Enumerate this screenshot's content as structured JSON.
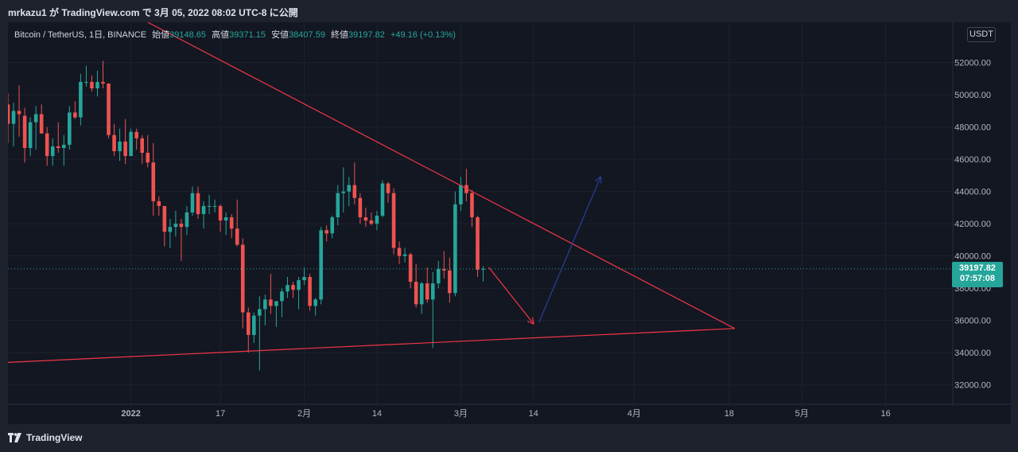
{
  "header": {
    "title": "mrkazu1 が TradingView.com で 3月 05, 2022 08:02 UTC-8 に公開"
  },
  "legend": {
    "symbol": "Bitcoin / TetherUS, 1日, BINANCE",
    "open_label": "始値",
    "open": "39148.65",
    "high_label": "高値",
    "high": "39371.15",
    "low_label": "安値",
    "low": "38407.59",
    "close_label": "終値",
    "close": "39197.82",
    "change": "+49.16 (+0.13%)"
  },
  "currency_badge": "USDT",
  "price_tag": {
    "price": "39197.82",
    "countdown": "07:57:08"
  },
  "footer": {
    "brand": "TradingView"
  },
  "colors": {
    "up": "#26a69a",
    "down": "#ef5350",
    "trendline": "#f23645",
    "arrow_down": "#f23645",
    "arrow_up": "#2a3f9a",
    "background": "#131722"
  },
  "chart_data": {
    "type": "candlestick",
    "symbol": "BTCUSDT",
    "interval": "1D",
    "x_ticks": [
      {
        "label": "2022",
        "date": "2022-01-01"
      },
      {
        "label": "17",
        "date": "2022-01-17"
      },
      {
        "label": "2月",
        "date": "2022-02-01"
      },
      {
        "label": "14",
        "date": "2022-02-14"
      },
      {
        "label": "3月",
        "date": "2022-03-01"
      },
      {
        "label": "14",
        "date": "2022-03-14"
      },
      {
        "label": "4月",
        "date": "2022-04-01"
      },
      {
        "label": "18",
        "date": "2022-04-18"
      },
      {
        "label": "5月",
        "date": "2022-05-01"
      },
      {
        "label": "16",
        "date": "2022-05-16"
      }
    ],
    "y_ticks": [
      32000,
      34000,
      36000,
      38000,
      40000,
      42000,
      44000,
      46000,
      48000,
      50000,
      52000
    ],
    "ylim": [
      30800,
      54500
    ],
    "xlim": [
      "2021-12-10",
      "2022-05-28"
    ],
    "last_price": 39197.82,
    "candles": [
      {
        "d": "2021-12-10",
        "o": 49400,
        "h": 50100,
        "l": 47000,
        "c": 48200
      },
      {
        "d": "2021-12-11",
        "o": 48200,
        "h": 49500,
        "l": 46800,
        "c": 49000
      },
      {
        "d": "2021-12-12",
        "o": 49000,
        "h": 50600,
        "l": 47400,
        "c": 48800
      },
      {
        "d": "2021-12-13",
        "o": 48700,
        "h": 49200,
        "l": 45800,
        "c": 46700
      },
      {
        "d": "2021-12-14",
        "o": 46700,
        "h": 48600,
        "l": 46200,
        "c": 48300
      },
      {
        "d": "2021-12-15",
        "o": 48300,
        "h": 49300,
        "l": 46600,
        "c": 48800
      },
      {
        "d": "2021-12-16",
        "o": 48800,
        "h": 49400,
        "l": 47600,
        "c": 47600
      },
      {
        "d": "2021-12-17",
        "o": 47600,
        "h": 48000,
        "l": 45600,
        "c": 46200
      },
      {
        "d": "2021-12-18",
        "o": 46200,
        "h": 47300,
        "l": 45600,
        "c": 46800
      },
      {
        "d": "2021-12-19",
        "o": 46800,
        "h": 48300,
        "l": 46400,
        "c": 46700
      },
      {
        "d": "2021-12-20",
        "o": 46700,
        "h": 47500,
        "l": 45600,
        "c": 46900
      },
      {
        "d": "2021-12-21",
        "o": 46900,
        "h": 49300,
        "l": 46600,
        "c": 48900
      },
      {
        "d": "2021-12-22",
        "o": 48900,
        "h": 49600,
        "l": 48500,
        "c": 48600
      },
      {
        "d": "2021-12-23",
        "o": 48600,
        "h": 51300,
        "l": 48100,
        "c": 50800
      },
      {
        "d": "2021-12-24",
        "o": 50800,
        "h": 51800,
        "l": 50500,
        "c": 50800
      },
      {
        "d": "2021-12-25",
        "o": 50800,
        "h": 51200,
        "l": 50200,
        "c": 50400
      },
      {
        "d": "2021-12-26",
        "o": 50400,
        "h": 51500,
        "l": 49900,
        "c": 50800
      },
      {
        "d": "2021-12-27",
        "o": 50800,
        "h": 52100,
        "l": 50400,
        "c": 50700
      },
      {
        "d": "2021-12-28",
        "o": 50700,
        "h": 50700,
        "l": 47300,
        "c": 47500
      },
      {
        "d": "2021-12-29",
        "o": 47500,
        "h": 48200,
        "l": 46200,
        "c": 46500
      },
      {
        "d": "2021-12-30",
        "o": 46500,
        "h": 47900,
        "l": 45900,
        "c": 47100
      },
      {
        "d": "2021-12-31",
        "o": 47100,
        "h": 48500,
        "l": 45700,
        "c": 46200
      },
      {
        "d": "2022-01-01",
        "o": 46200,
        "h": 47900,
        "l": 46200,
        "c": 47700
      },
      {
        "d": "2022-01-02",
        "o": 47700,
        "h": 47900,
        "l": 46600,
        "c": 47300
      },
      {
        "d": "2022-01-03",
        "o": 47300,
        "h": 47500,
        "l": 45700,
        "c": 46400
      },
      {
        "d": "2022-01-04",
        "o": 46400,
        "h": 47500,
        "l": 45500,
        "c": 45800
      },
      {
        "d": "2022-01-05",
        "o": 45800,
        "h": 47000,
        "l": 42500,
        "c": 43400
      },
      {
        "d": "2022-01-06",
        "o": 43400,
        "h": 43700,
        "l": 42500,
        "c": 43100
      },
      {
        "d": "2022-01-07",
        "o": 43100,
        "h": 43100,
        "l": 40600,
        "c": 41500
      },
      {
        "d": "2022-01-08",
        "o": 41500,
        "h": 42300,
        "l": 40500,
        "c": 41800
      },
      {
        "d": "2022-01-09",
        "o": 41800,
        "h": 42800,
        "l": 41200,
        "c": 42000
      },
      {
        "d": "2022-01-10",
        "o": 42000,
        "h": 42300,
        "l": 39700,
        "c": 41800
      },
      {
        "d": "2022-01-11",
        "o": 41800,
        "h": 43100,
        "l": 41300,
        "c": 42700
      },
      {
        "d": "2022-01-12",
        "o": 42700,
        "h": 44300,
        "l": 42500,
        "c": 43900
      },
      {
        "d": "2022-01-13",
        "o": 43900,
        "h": 44300,
        "l": 42300,
        "c": 42600
      },
      {
        "d": "2022-01-14",
        "o": 42600,
        "h": 43400,
        "l": 41700,
        "c": 43100
      },
      {
        "d": "2022-01-15",
        "o": 43100,
        "h": 43800,
        "l": 42600,
        "c": 43100
      },
      {
        "d": "2022-01-16",
        "o": 43100,
        "h": 43500,
        "l": 42700,
        "c": 43100
      },
      {
        "d": "2022-01-17",
        "o": 43100,
        "h": 43200,
        "l": 41500,
        "c": 42200
      },
      {
        "d": "2022-01-18",
        "o": 42200,
        "h": 42700,
        "l": 41300,
        "c": 42400
      },
      {
        "d": "2022-01-19",
        "o": 42400,
        "h": 42600,
        "l": 41100,
        "c": 41700
      },
      {
        "d": "2022-01-20",
        "o": 41700,
        "h": 43500,
        "l": 40600,
        "c": 40700
      },
      {
        "d": "2022-01-21",
        "o": 40700,
        "h": 41100,
        "l": 35500,
        "c": 36500
      },
      {
        "d": "2022-01-22",
        "o": 36500,
        "h": 36800,
        "l": 34000,
        "c": 35100
      },
      {
        "d": "2022-01-23",
        "o": 35100,
        "h": 36500,
        "l": 34600,
        "c": 36300
      },
      {
        "d": "2022-01-24",
        "o": 36300,
        "h": 37500,
        "l": 32900,
        "c": 36700
      },
      {
        "d": "2022-01-25",
        "o": 36700,
        "h": 37600,
        "l": 35700,
        "c": 37300
      },
      {
        "d": "2022-01-26",
        "o": 37300,
        "h": 38900,
        "l": 36400,
        "c": 36900
      },
      {
        "d": "2022-01-27",
        "o": 36900,
        "h": 37200,
        "l": 35600,
        "c": 37200
      },
      {
        "d": "2022-01-28",
        "o": 37200,
        "h": 38000,
        "l": 36200,
        "c": 37800
      },
      {
        "d": "2022-01-29",
        "o": 37800,
        "h": 38700,
        "l": 37400,
        "c": 38200
      },
      {
        "d": "2022-01-30",
        "o": 38200,
        "h": 38400,
        "l": 37400,
        "c": 37900
      },
      {
        "d": "2022-01-31",
        "o": 37900,
        "h": 38700,
        "l": 36700,
        "c": 38500
      },
      {
        "d": "2022-02-01",
        "o": 38500,
        "h": 39300,
        "l": 38200,
        "c": 38700
      },
      {
        "d": "2022-02-02",
        "o": 38700,
        "h": 38900,
        "l": 36600,
        "c": 36900
      },
      {
        "d": "2022-02-03",
        "o": 36900,
        "h": 37400,
        "l": 36300,
        "c": 37300
      },
      {
        "d": "2022-02-04",
        "o": 37300,
        "h": 41800,
        "l": 37000,
        "c": 41600
      },
      {
        "d": "2022-02-05",
        "o": 41600,
        "h": 41900,
        "l": 40900,
        "c": 41400
      },
      {
        "d": "2022-02-06",
        "o": 41400,
        "h": 42500,
        "l": 41100,
        "c": 42400
      },
      {
        "d": "2022-02-07",
        "o": 42400,
        "h": 44400,
        "l": 41900,
        "c": 43900
      },
      {
        "d": "2022-02-08",
        "o": 43900,
        "h": 45500,
        "l": 42700,
        "c": 44000
      },
      {
        "d": "2022-02-09",
        "o": 44000,
        "h": 44900,
        "l": 43100,
        "c": 44400
      },
      {
        "d": "2022-02-10",
        "o": 44400,
        "h": 45800,
        "l": 43200,
        "c": 43600
      },
      {
        "d": "2022-02-11",
        "o": 43600,
        "h": 43900,
        "l": 42000,
        "c": 42400
      },
      {
        "d": "2022-02-12",
        "o": 42400,
        "h": 43000,
        "l": 41800,
        "c": 42200
      },
      {
        "d": "2022-02-13",
        "o": 42200,
        "h": 42700,
        "l": 41900,
        "c": 42000
      },
      {
        "d": "2022-02-14",
        "o": 42000,
        "h": 42800,
        "l": 41600,
        "c": 42500
      },
      {
        "d": "2022-02-15",
        "o": 42500,
        "h": 44700,
        "l": 42400,
        "c": 44500
      },
      {
        "d": "2022-02-16",
        "o": 44500,
        "h": 44600,
        "l": 43300,
        "c": 43900
      },
      {
        "d": "2022-02-17",
        "o": 43900,
        "h": 44200,
        "l": 40100,
        "c": 40500
      },
      {
        "d": "2022-02-18",
        "o": 40500,
        "h": 40900,
        "l": 39500,
        "c": 40000
      },
      {
        "d": "2022-02-19",
        "o": 40000,
        "h": 40500,
        "l": 39600,
        "c": 40100
      },
      {
        "d": "2022-02-20",
        "o": 40100,
        "h": 40200,
        "l": 38000,
        "c": 38400
      },
      {
        "d": "2022-02-21",
        "o": 38400,
        "h": 39500,
        "l": 36800,
        "c": 37000
      },
      {
        "d": "2022-02-22",
        "o": 37000,
        "h": 38400,
        "l": 36400,
        "c": 38300
      },
      {
        "d": "2022-02-23",
        "o": 38300,
        "h": 39300,
        "l": 37100,
        "c": 37300
      },
      {
        "d": "2022-02-24",
        "o": 37300,
        "h": 39000,
        "l": 34300,
        "c": 38300
      },
      {
        "d": "2022-02-25",
        "o": 38300,
        "h": 39700,
        "l": 38000,
        "c": 39200
      },
      {
        "d": "2022-02-26",
        "o": 39200,
        "h": 40300,
        "l": 38600,
        "c": 39100
      },
      {
        "d": "2022-02-27",
        "o": 39100,
        "h": 39900,
        "l": 37100,
        "c": 37700
      },
      {
        "d": "2022-02-28",
        "o": 37700,
        "h": 44000,
        "l": 37500,
        "c": 43200
      },
      {
        "d": "2022-03-01",
        "o": 43200,
        "h": 44900,
        "l": 42800,
        "c": 44400
      },
      {
        "d": "2022-03-02",
        "o": 44400,
        "h": 45400,
        "l": 43400,
        "c": 43900
      },
      {
        "d": "2022-03-03",
        "o": 43900,
        "h": 44100,
        "l": 41800,
        "c": 42400
      },
      {
        "d": "2022-03-04",
        "o": 42400,
        "h": 42500,
        "l": 38700,
        "c": 39150
      },
      {
        "d": "2022-03-05",
        "o": 39148.65,
        "h": 39371.15,
        "l": 38407.59,
        "c": 39197.82
      }
    ],
    "drawings": [
      {
        "type": "trendline",
        "name": "descending-resistance",
        "p1": {
          "d": "2022-01-04",
          "price": 54500
        },
        "p2": {
          "d": "2022-04-19",
          "price": 35500
        }
      },
      {
        "type": "trendline",
        "name": "ascending-support",
        "p1": {
          "d": "2021-12-10",
          "price": 33400
        },
        "p2": {
          "d": "2022-04-19",
          "price": 35500
        }
      },
      {
        "type": "arrow",
        "name": "projected-drop",
        "p1": {
          "d": "2022-03-06",
          "price": 39300
        },
        "p2": {
          "d": "2022-03-14",
          "price": 35800
        }
      },
      {
        "type": "arrow",
        "name": "projected-rise",
        "p1": {
          "d": "2022-03-15",
          "price": 35900
        },
        "p2": {
          "d": "2022-03-26",
          "price": 44900
        }
      }
    ]
  }
}
